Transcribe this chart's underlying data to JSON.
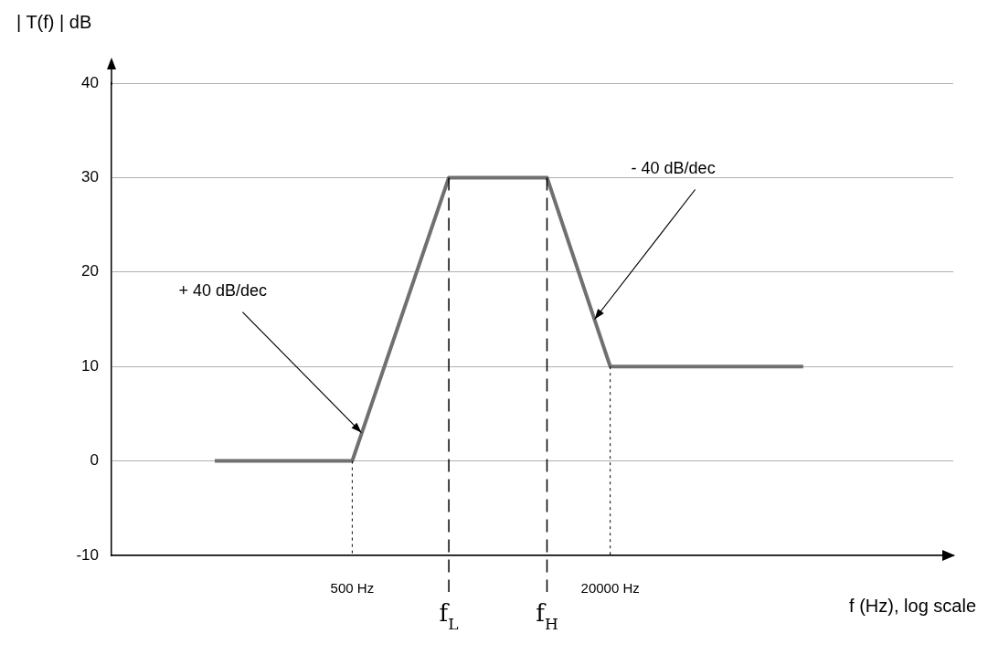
{
  "chart_data": {
    "type": "line",
    "xlabel": "f (Hz), log scale",
    "ylabel": "| T(f) | dB",
    "x": [
      70,
      500,
      1990,
      8100,
      20000,
      316000
    ],
    "values": [
      0,
      0,
      30,
      30,
      10,
      10
    ],
    "color": "#707070",
    "log": "x",
    "xlim": [
      16,
      2700000
    ],
    "ylim": [
      -10,
      40
    ],
    "yticks": [
      -10,
      0,
      10,
      20,
      30,
      40
    ],
    "xticks": [
      {
        "value": 500,
        "label": "500 Hz"
      },
      {
        "value": 20000,
        "label": "20000 Hz"
      }
    ],
    "grid": "y",
    "legend": false,
    "marker": "none",
    "line_style": "solid",
    "ref_lines": [
      {
        "axis": "x",
        "value": 500,
        "line_style": "dotted"
      },
      {
        "axis": "x",
        "value": 1990,
        "label": "f$_{L}$",
        "line_style": "dashed"
      },
      {
        "axis": "x",
        "value": 8100,
        "label": "f$_{H}$",
        "line_style": "dashed"
      },
      {
        "axis": "x",
        "value": 20000,
        "line_style": "dotted"
      }
    ],
    "annotations": [
      {
        "text": "+ 40 dB/dec",
        "x": 570,
        "y": 3
      },
      {
        "text": "- 40 dB/dec",
        "x": 16000,
        "y": 15
      }
    ]
  }
}
